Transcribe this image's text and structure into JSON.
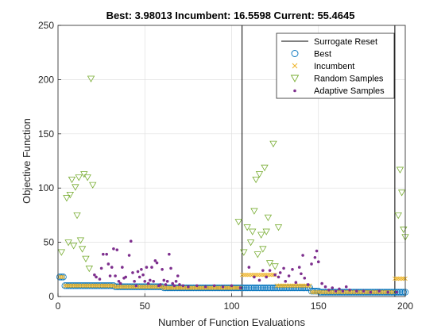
{
  "chart_data": {
    "type": "scatter",
    "title": "Best: 3.98013 Incumbent: 16.5598 Current: 55.4645",
    "xlabel": "Number of Function Evaluations",
    "ylabel": "Objective Function",
    "xlim": [
      0,
      200
    ],
    "ylim": [
      0,
      250
    ],
    "xticks": [
      0,
      50,
      100,
      150,
      200
    ],
    "yticks": [
      0,
      50,
      100,
      150,
      200,
      250
    ],
    "grid": true,
    "legend_position": "top-right",
    "colors": {
      "reset": "#000000",
      "best": "#0072BD",
      "incumbent": "#EDB120",
      "random": "#77AC30",
      "adaptive": "#7E2F8E"
    },
    "legend": [
      "Surrogate Reset",
      "Best",
      "Incumbent",
      "Random Samples",
      "Adaptive Samples"
    ],
    "surrogate_resets": [
      106,
      194
    ],
    "series": {
      "best": {
        "name": "Best",
        "segments": [
          {
            "x_start": 1,
            "x_end": 3,
            "y": 18
          },
          {
            "x_start": 4,
            "x_end": 32,
            "y": 10
          },
          {
            "x_start": 33,
            "x_end": 60,
            "y": 9
          },
          {
            "x_start": 61,
            "x_end": 145,
            "y": 8
          },
          {
            "x_start": 146,
            "x_end": 150,
            "y": 5
          },
          {
            "x_start": 151,
            "x_end": 200,
            "y": 4
          }
        ]
      },
      "incumbent": {
        "name": "Incumbent",
        "segments": [
          {
            "x_start": 1,
            "x_end": 3,
            "y": 18
          },
          {
            "x_start": 4,
            "x_end": 32,
            "y": 10
          },
          {
            "x_start": 33,
            "x_end": 60,
            "y": 9
          },
          {
            "x_start": 61,
            "x_end": 105,
            "y": 8
          },
          {
            "x_start": 106,
            "x_end": 125,
            "y": 20
          },
          {
            "x_start": 126,
            "x_end": 145,
            "y": 10
          },
          {
            "x_start": 146,
            "x_end": 193,
            "y": 4
          },
          {
            "x_start": 194,
            "x_end": 200,
            "y": 16.5
          }
        ]
      },
      "random": {
        "name": "Random Samples",
        "points": [
          [
            2,
            41
          ],
          [
            5,
            91
          ],
          [
            6,
            50
          ],
          [
            7,
            94
          ],
          [
            8,
            108
          ],
          [
            9,
            47
          ],
          [
            10,
            101
          ],
          [
            11,
            75
          ],
          [
            12,
            110
          ],
          [
            13,
            52
          ],
          [
            14,
            44
          ],
          [
            15,
            113
          ],
          [
            16,
            35
          ],
          [
            17,
            110
          ],
          [
            18,
            26
          ],
          [
            19,
            201
          ],
          [
            20,
            103
          ],
          [
            104,
            69
          ],
          [
            107,
            41
          ],
          [
            109,
            64
          ],
          [
            111,
            50
          ],
          [
            112,
            60
          ],
          [
            113,
            79
          ],
          [
            114,
            108
          ],
          [
            115,
            39
          ],
          [
            116,
            113
          ],
          [
            117,
            57
          ],
          [
            118,
            44
          ],
          [
            119,
            119
          ],
          [
            120,
            60
          ],
          [
            121,
            73
          ],
          [
            122,
            31
          ],
          [
            124,
            141
          ],
          [
            125,
            28
          ],
          [
            127,
            64
          ],
          [
            196,
            75
          ],
          [
            197,
            117
          ],
          [
            198,
            96
          ],
          [
            199,
            62
          ],
          [
            200,
            55
          ]
        ]
      },
      "adaptive": {
        "name": "Adaptive Samples",
        "points": [
          [
            21,
            20
          ],
          [
            22,
            18
          ],
          [
            24,
            16
          ],
          [
            25,
            26
          ],
          [
            26,
            39
          ],
          [
            28,
            39
          ],
          [
            29,
            30
          ],
          [
            30,
            19
          ],
          [
            31,
            27
          ],
          [
            32,
            44
          ],
          [
            33,
            19
          ],
          [
            34,
            43
          ],
          [
            35,
            14
          ],
          [
            36,
            12
          ],
          [
            37,
            27
          ],
          [
            38,
            17
          ],
          [
            39,
            18
          ],
          [
            41,
            38
          ],
          [
            42,
            51
          ],
          [
            43,
            22
          ],
          [
            44,
            14
          ],
          [
            45,
            10
          ],
          [
            46,
            23
          ],
          [
            47,
            18
          ],
          [
            48,
            25
          ],
          [
            49,
            20
          ],
          [
            50,
            14
          ],
          [
            51,
            27
          ],
          [
            52,
            12
          ],
          [
            53,
            15
          ],
          [
            54,
            27
          ],
          [
            55,
            14
          ],
          [
            56,
            33
          ],
          [
            57,
            31
          ],
          [
            58,
            10
          ],
          [
            59,
            11
          ],
          [
            60,
            25
          ],
          [
            61,
            15
          ],
          [
            62,
            11
          ],
          [
            63,
            14
          ],
          [
            64,
            39
          ],
          [
            65,
            26
          ],
          [
            66,
            12
          ],
          [
            67,
            10
          ],
          [
            68,
            14
          ],
          [
            69,
            19
          ],
          [
            70,
            11
          ],
          [
            72,
            10
          ],
          [
            75,
            9
          ],
          [
            80,
            10
          ],
          [
            85,
            9
          ],
          [
            90,
            10
          ],
          [
            95,
            9
          ],
          [
            100,
            10
          ],
          [
            105,
            8
          ],
          [
            110,
            27
          ],
          [
            113,
            18
          ],
          [
            116,
            15
          ],
          [
            118,
            24
          ],
          [
            120,
            18
          ],
          [
            122,
            24
          ],
          [
            125,
            20
          ],
          [
            127,
            18
          ],
          [
            128,
            22
          ],
          [
            130,
            26
          ],
          [
            131,
            14
          ],
          [
            133,
            19
          ],
          [
            135,
            25
          ],
          [
            137,
            13
          ],
          [
            139,
            27
          ],
          [
            140,
            21
          ],
          [
            141,
            38
          ],
          [
            142,
            17
          ],
          [
            144,
            11
          ],
          [
            146,
            30
          ],
          [
            148,
            36
          ],
          [
            149,
            42
          ],
          [
            150,
            32
          ],
          [
            152,
            12
          ],
          [
            154,
            9
          ],
          [
            156,
            6
          ],
          [
            158,
            8
          ],
          [
            160,
            5
          ],
          [
            162,
            7
          ],
          [
            164,
            5
          ],
          [
            166,
            9
          ],
          [
            168,
            6
          ],
          [
            172,
            5
          ],
          [
            176,
            5
          ],
          [
            180,
            4
          ],
          [
            185,
            5
          ],
          [
            190,
            4
          ],
          [
            195,
            4
          ]
        ]
      }
    }
  }
}
